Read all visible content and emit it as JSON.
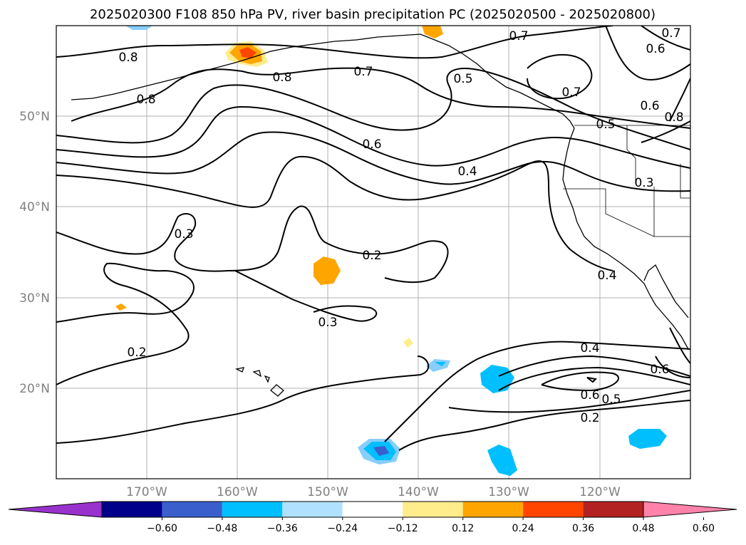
{
  "title": "2025020300 F108 850 hPa PV, river basin precipitation PC (2025020500 - 2025020800)",
  "map": {
    "lat_ticks": [
      "50°N",
      "40°N",
      "30°N",
      "20°N"
    ],
    "lon_ticks": [
      "170°W",
      "160°W",
      "150°W",
      "140°W",
      "130°W",
      "120°W"
    ],
    "grid": true,
    "extent": {
      "lon": [
        -180,
        -110
      ],
      "lat": [
        10,
        60
      ]
    }
  },
  "contour_labels": [
    "0.8",
    "0.8",
    "0.8",
    "0.7",
    "0.7",
    "0.7",
    "0.7",
    "0.6",
    "0.6",
    "0.6",
    "0.5",
    "0.5",
    "0.8",
    "0.4",
    "0.3",
    "0.3",
    "0.2",
    "0.4",
    "0.3",
    "0.2",
    "0.4",
    "0.6",
    "0.5",
    "0.2",
    "0.6"
  ],
  "colorbar": {
    "ticks": [
      "−0.60",
      "−0.48",
      "−0.36",
      "−0.24",
      "−0.12",
      "0.12",
      "0.24",
      "0.36",
      "0.48",
      "0.60"
    ],
    "colors": [
      "#9932cc",
      "#00008b",
      "#3a5fcd",
      "#00bfff",
      "#b0e2ff",
      "#ffffff",
      "#ffec8b",
      "#ffa500",
      "#ff4500",
      "#b22222",
      "#ff82ab"
    ]
  }
}
